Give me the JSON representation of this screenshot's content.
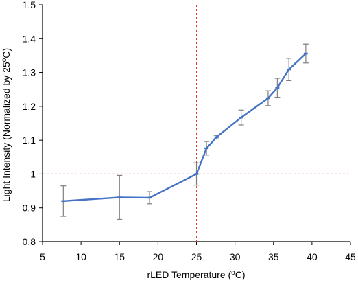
{
  "chart_data": {
    "type": "line",
    "xlabel": "rLED Temperature (",
    "xlabel_sup": "o",
    "xlabel_end": "C)",
    "ylabel": "Light Intensity (Normalized by 25",
    "ylabel_sup": "o",
    "ylabel_end": "C)",
    "xlim": [
      5,
      45
    ],
    "ylim": [
      0.8,
      1.5
    ],
    "x_ticks": [
      5,
      10,
      15,
      20,
      25,
      30,
      35,
      40,
      45
    ],
    "y_ticks": [
      0.8,
      0.9,
      1,
      1.1,
      1.2,
      1.3,
      1.4,
      1.5
    ],
    "x_tick_labels": [
      "5",
      "10",
      "15",
      "20",
      "25",
      "30",
      "35",
      "40",
      "45"
    ],
    "y_tick_labels": [
      "0.8",
      "0.9",
      "1",
      "1.1",
      "1.2",
      "1.3",
      "1.4",
      "1.5"
    ],
    "grid": false,
    "series": [
      {
        "color": "#4472c4",
        "x": [
          7.7,
          15.0,
          18.9,
          25.0,
          26.3,
          27.6,
          30.8,
          34.3,
          35.5,
          37.0,
          39.2
        ],
        "y": [
          0.92,
          0.931,
          0.93,
          1.0,
          1.076,
          1.109,
          1.167,
          1.224,
          1.255,
          1.309,
          1.356
        ],
        "y_err": [
          0.045,
          0.065,
          0.018,
          0.033,
          0.02,
          0.005,
          0.022,
          0.022,
          0.028,
          0.033,
          0.028
        ]
      }
    ],
    "reference_lines": {
      "color": "#e03c31",
      "x": 25,
      "y": 1
    },
    "error_bar_color": "#7f7f7f"
  }
}
